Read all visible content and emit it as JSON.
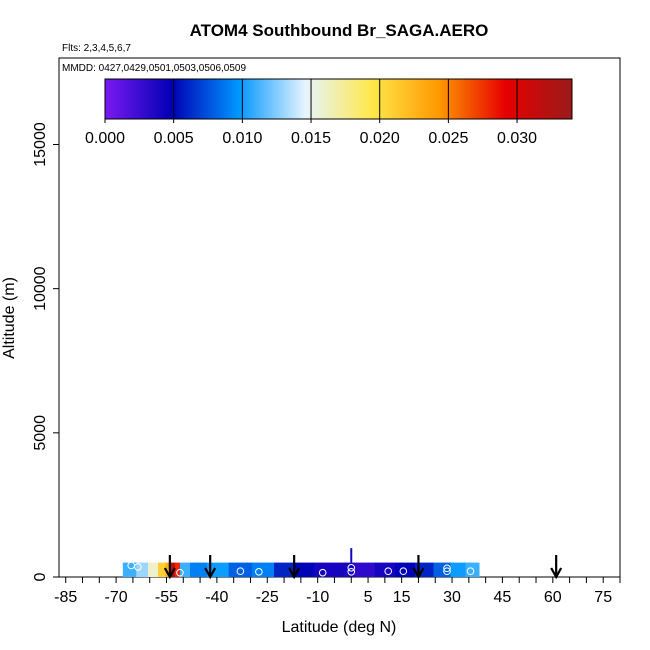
{
  "chart_data": {
    "type": "heatmap",
    "title": "ATOM4 Southbound Br_SAGA.AERO",
    "flights_note": "Flts: 2,3,4,5,6,7",
    "dates_note": "MMDD: 0427,0429,0501,0503,0506,0509",
    "xlabel": "Latitude (deg N)",
    "ylabel": "Altitude (m)",
    "xlim": [
      -87,
      80
    ],
    "ylim": [
      0,
      18000
    ],
    "x_ticks": [
      -85,
      -70,
      -55,
      -40,
      -25,
      -10,
      5,
      15,
      30,
      45,
      60,
      75
    ],
    "y_ticks": [
      0,
      5000,
      10000,
      15000
    ],
    "colorbar": {
      "ticks": [
        "0.000",
        "0.005",
        "0.010",
        "0.015",
        "0.020",
        "0.025",
        "0.030"
      ],
      "range": [
        0,
        0.034
      ],
      "colors": [
        "#7b19f2",
        "#0000b4",
        "#0096ff",
        "#e6f4ff",
        "#ffe84a",
        "#ff9900",
        "#e60000",
        "#9b1a1a"
      ]
    },
    "curtain": {
      "altitude_range": [
        0,
        500
      ],
      "cells": [
        {
          "lat": -66.0,
          "value": 0.011
        },
        {
          "lat": -62.0,
          "value": 0.013
        },
        {
          "lat": -59.0,
          "value": 0.016
        },
        {
          "lat": -56.0,
          "value": 0.021
        },
        {
          "lat": -54.5,
          "value": 0.023
        },
        {
          "lat": -53.0,
          "value": 0.032
        },
        {
          "lat": -52.0,
          "value": 0.028
        },
        {
          "lat": -50.0,
          "value": 0.011
        },
        {
          "lat": -46.0,
          "value": 0.009
        },
        {
          "lat": -40.0,
          "value": 0.01
        },
        {
          "lat": -33.0,
          "value": 0.008
        },
        {
          "lat": -26.0,
          "value": 0.009
        },
        {
          "lat": -20.0,
          "value": 0.006
        },
        {
          "lat": -14.0,
          "value": 0.005
        },
        {
          "lat": -8.0,
          "value": 0.004
        },
        {
          "lat": -2.0,
          "value": 0.004
        },
        {
          "lat": 4.0,
          "value": 0.003
        },
        {
          "lat": 10.0,
          "value": 0.004
        },
        {
          "lat": 16.0,
          "value": 0.005
        },
        {
          "lat": 22.0,
          "value": 0.006
        },
        {
          "lat": 27.0,
          "value": 0.008
        },
        {
          "lat": 32.0,
          "value": 0.01
        },
        {
          "lat": 36.0,
          "value": 0.011
        }
      ],
      "profile": {
        "lat": 0,
        "alt_range": [
          500,
          1000
        ],
        "value": 0.004
      }
    },
    "sample_points": [
      {
        "lat": -65.5,
        "alt": 400
      },
      {
        "lat": -63.5,
        "alt": 350
      },
      {
        "lat": -51.0,
        "alt": 150
      },
      {
        "lat": -33.0,
        "alt": 200
      },
      {
        "lat": -27.5,
        "alt": 180
      },
      {
        "lat": -8.5,
        "alt": 150
      },
      {
        "lat": 0.0,
        "alt": 180
      },
      {
        "lat": 0.0,
        "alt": 320
      },
      {
        "lat": 11.0,
        "alt": 200
      },
      {
        "lat": 15.5,
        "alt": 200
      },
      {
        "lat": 28.5,
        "alt": 300
      },
      {
        "lat": 28.5,
        "alt": 200
      },
      {
        "lat": 35.5,
        "alt": 200
      }
    ],
    "arrows_lat": [
      -54,
      -42,
      -17,
      20,
      61
    ]
  }
}
